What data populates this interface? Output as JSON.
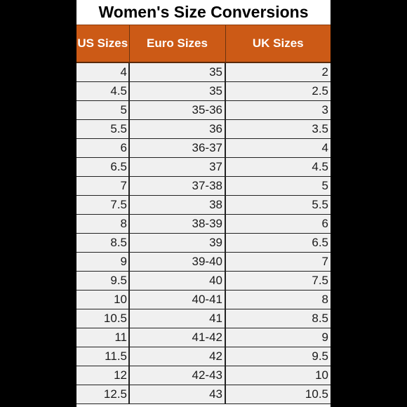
{
  "title": "Women's Size Conversions",
  "headers": [
    "US Sizes",
    "Euro Sizes",
    "UK Sizes"
  ],
  "colors": {
    "header_bg": "#cc5a16",
    "header_text": "#ffffff",
    "cell_bg": "#f0f0f0",
    "page_bg": "#000000"
  },
  "rows": [
    [
      "4",
      "35",
      "2"
    ],
    [
      "4.5",
      "35",
      "2.5"
    ],
    [
      "5",
      "35-36",
      "3"
    ],
    [
      "5.5",
      "36",
      "3.5"
    ],
    [
      "6",
      "36-37",
      "4"
    ],
    [
      "6.5",
      "37",
      "4.5"
    ],
    [
      "7",
      "37-38",
      "5"
    ],
    [
      "7.5",
      "38",
      "5.5"
    ],
    [
      "8",
      "38-39",
      "6"
    ],
    [
      "8.5",
      "39",
      "6.5"
    ],
    [
      "9",
      "39-40",
      "7"
    ],
    [
      "9.5",
      "40",
      "7.5"
    ],
    [
      "10",
      "40-41",
      "8"
    ],
    [
      "10.5",
      "41",
      "8.5"
    ],
    [
      "11",
      "41-42",
      "9"
    ],
    [
      "11.5",
      "42",
      "9.5"
    ],
    [
      "12",
      "42-43",
      "10"
    ],
    [
      "12.5",
      "43",
      "10.5"
    ]
  ]
}
